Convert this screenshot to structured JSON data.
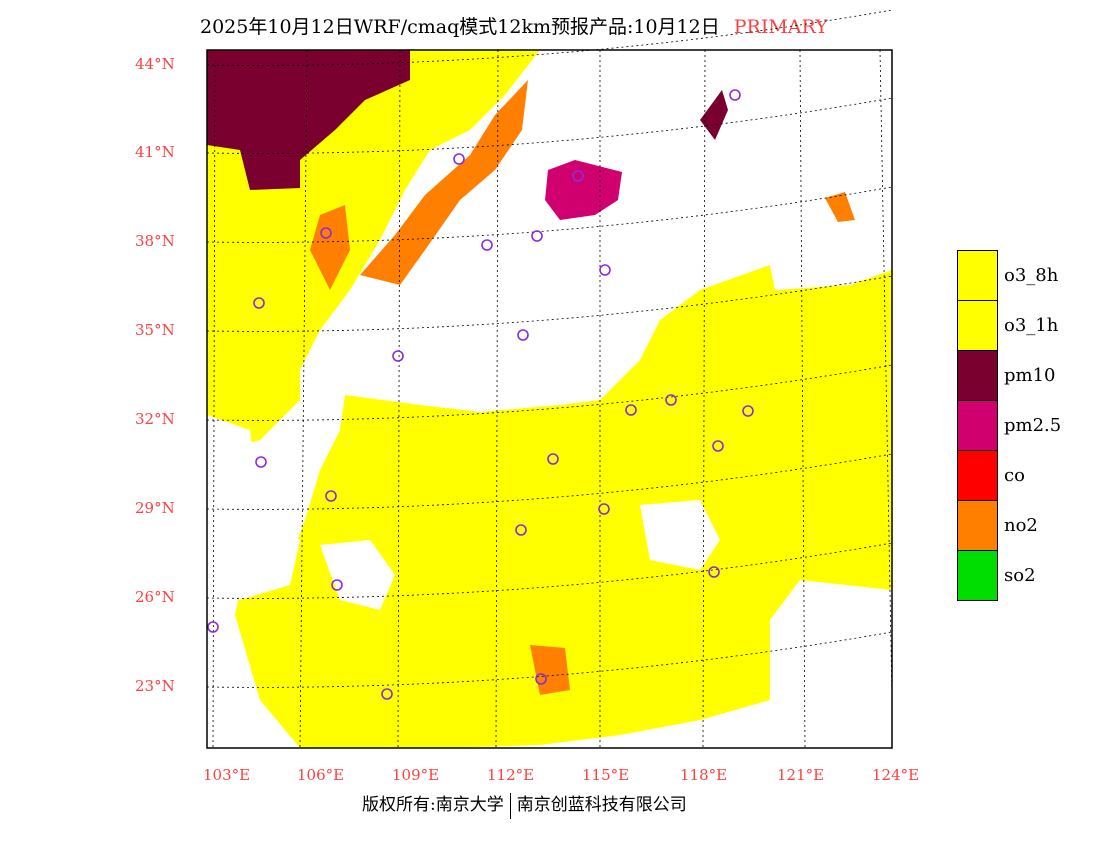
{
  "title": {
    "main": "2025年10月12日WRF/cmaq模式12km预报产品:10月12日",
    "tag": "PRIMARY"
  },
  "lat_labels": [
    "44°N",
    "41°N",
    "38°N",
    "35°N",
    "32°N",
    "29°N",
    "26°N",
    "23°N"
  ],
  "lon_labels": [
    "103°E",
    "106°E",
    "109°E",
    "112°E",
    "115°E",
    "118°E",
    "121°E",
    "124°E"
  ],
  "legend": [
    {
      "label": "o3_8h",
      "color": "#ffff00"
    },
    {
      "label": "o3_1h",
      "color": "#ffff00"
    },
    {
      "label": "pm10",
      "color": "#7a0030"
    },
    {
      "label": "pm2.5",
      "color": "#d0006f"
    },
    {
      "label": "co",
      "color": "#ff0000"
    },
    {
      "label": "no2",
      "color": "#ff7f00"
    },
    {
      "label": "so2",
      "color": "#00dd00"
    }
  ],
  "footer": {
    "left": "版权所有:南京大学",
    "right": "南京创蓝科技有限公司"
  }
}
